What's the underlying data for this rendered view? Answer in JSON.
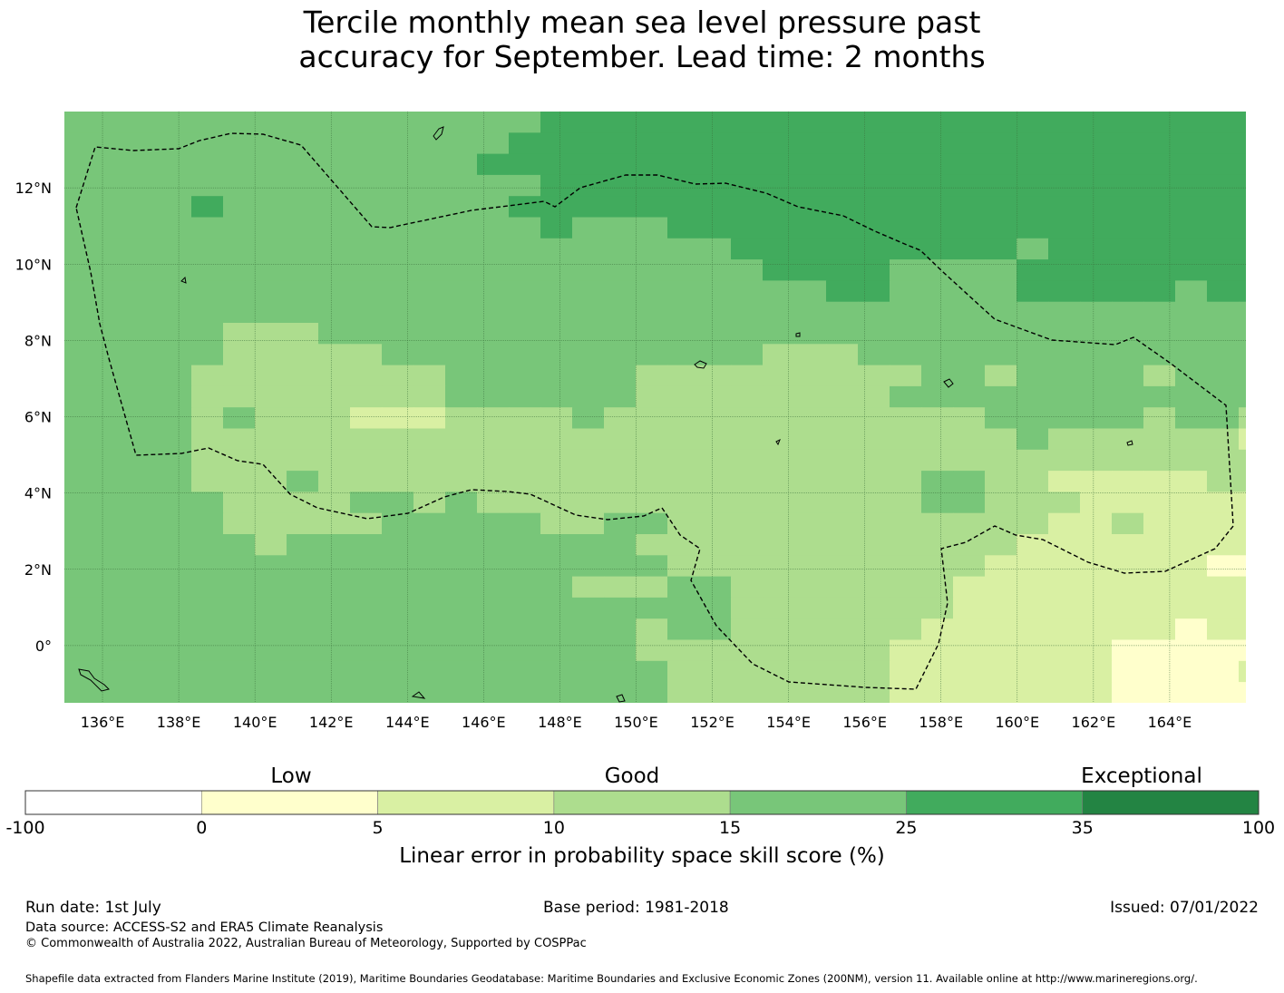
{
  "title": {
    "line1": "Tercile monthly mean sea level pressure past",
    "line2": "accuracy for September. Lead time: 2 months"
  },
  "map": {
    "lon_range": [
      135.0,
      166.0
    ],
    "lat_range": [
      -1.5,
      14.0
    ],
    "grid_lines": true,
    "lon_ticks": [
      "136°E",
      "138°E",
      "140°E",
      "142°E",
      "144°E",
      "146°E",
      "148°E",
      "150°E",
      "152°E",
      "154°E",
      "156°E",
      "158°E",
      "160°E",
      "162°E",
      "164°E"
    ],
    "lat_ticks": [
      "12°N",
      "10°N",
      "8°N",
      "6°N",
      "4°N",
      "2°N",
      "0°"
    ]
  },
  "colorbar": {
    "labels": {
      "low": "Low",
      "good": "Good",
      "exceptional": "Exceptional"
    },
    "ticks": [
      "-100",
      "0",
      "5",
      "10",
      "15",
      "25",
      "35",
      "100"
    ],
    "colors": [
      "#ffffff",
      "#ffffcc",
      "#d9f0a3",
      "#addd8e",
      "#78c679",
      "#41ab5d",
      "#238443"
    ],
    "title": "Linear error in probability space skill score (%)"
  },
  "footer": {
    "run_date": "Run date: 1st July",
    "base_period": "Base period: 1981-2018",
    "issued": "Issued: 07/01/2022",
    "data_source": "Data source: ACCESS-S2 and ERA5 Climate Reanalysis",
    "copyright": "© Commonwealth of Australia 2022, Australian Bureau of Meteorology, Supported by COSPPac",
    "shapefile": "Shapefile data extracted from Flanders Marine Institute (2019), Maritime Boundaries Geodatabase: Maritime Boundaries and Exclusive Economic Zones (200NM), version 11. Available online at http://www.marineregions.org/."
  }
}
